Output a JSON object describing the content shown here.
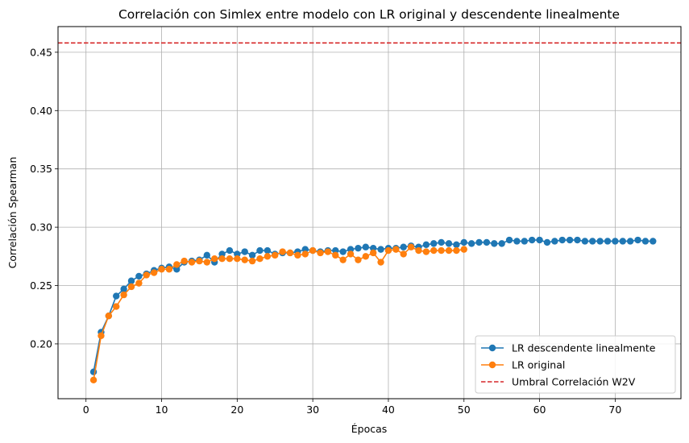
{
  "chart_data": {
    "type": "line",
    "title": "Correlación con Simlex entre modelo con LR original y descendente linealmente",
    "xlabel": "Épocas",
    "ylabel": "Correlación Spearman",
    "xlim": [
      -3.7,
      78.7
    ],
    "ylim": [
      0.153,
      0.472
    ],
    "xticks": [
      0,
      10,
      20,
      30,
      40,
      50,
      60,
      70
    ],
    "xtick_labels": [
      "0",
      "10",
      "20",
      "30",
      "40",
      "50",
      "60",
      "70"
    ],
    "yticks": [
      0.2,
      0.25,
      0.3,
      0.35,
      0.4,
      0.45
    ],
    "ytick_labels": [
      "0.20",
      "0.25",
      "0.30",
      "0.35",
      "0.40",
      "0.45"
    ],
    "grid": true,
    "legend_position": "lower right",
    "series": [
      {
        "name": "LR descendente linealmente",
        "color": "#1f77b4",
        "marker": "circle",
        "x": [
          1,
          2,
          3,
          4,
          5,
          6,
          7,
          8,
          9,
          10,
          11,
          12,
          13,
          14,
          15,
          16,
          17,
          18,
          19,
          20,
          21,
          22,
          23,
          24,
          25,
          26,
          27,
          28,
          29,
          30,
          31,
          32,
          33,
          34,
          35,
          36,
          37,
          38,
          39,
          40,
          41,
          42,
          43,
          44,
          45,
          46,
          47,
          48,
          49,
          50,
          51,
          52,
          53,
          54,
          55,
          56,
          57,
          58,
          59,
          60,
          61,
          62,
          63,
          64,
          65,
          66,
          67,
          68,
          69,
          70,
          71,
          72,
          73,
          74,
          75
        ],
        "y": [
          0.176,
          0.21,
          0.224,
          0.241,
          0.247,
          0.254,
          0.258,
          0.26,
          0.263,
          0.265,
          0.266,
          0.264,
          0.27,
          0.271,
          0.272,
          0.276,
          0.27,
          0.277,
          0.28,
          0.277,
          0.279,
          0.276,
          0.28,
          0.28,
          0.277,
          0.278,
          0.278,
          0.279,
          0.281,
          0.28,
          0.279,
          0.28,
          0.28,
          0.279,
          0.281,
          0.282,
          0.283,
          0.282,
          0.281,
          0.282,
          0.282,
          0.283,
          0.284,
          0.283,
          0.285,
          0.286,
          0.287,
          0.286,
          0.285,
          0.287,
          0.286,
          0.287,
          0.287,
          0.286,
          0.286,
          0.289,
          0.288,
          0.288,
          0.289,
          0.289,
          0.287,
          0.288,
          0.289,
          0.289,
          0.289,
          0.288,
          0.288,
          0.288,
          0.288,
          0.288,
          0.288,
          0.288,
          0.289,
          0.288,
          0.288
        ]
      },
      {
        "name": "LR original",
        "color": "#ff7f0e",
        "marker": "circle",
        "x": [
          1,
          2,
          3,
          4,
          5,
          6,
          7,
          8,
          9,
          10,
          11,
          12,
          13,
          14,
          15,
          16,
          17,
          18,
          19,
          20,
          21,
          22,
          23,
          24,
          25,
          26,
          27,
          28,
          29,
          30,
          31,
          32,
          33,
          34,
          35,
          36,
          37,
          38,
          39,
          40,
          41,
          42,
          43,
          44,
          45,
          46,
          47,
          48,
          49,
          50
        ],
        "y": [
          0.169,
          0.207,
          0.224,
          0.232,
          0.242,
          0.249,
          0.252,
          0.259,
          0.261,
          0.264,
          0.264,
          0.268,
          0.271,
          0.27,
          0.271,
          0.27,
          0.273,
          0.273,
          0.273,
          0.273,
          0.272,
          0.271,
          0.273,
          0.275,
          0.276,
          0.279,
          0.278,
          0.276,
          0.277,
          0.28,
          0.278,
          0.279,
          0.276,
          0.272,
          0.277,
          0.272,
          0.275,
          0.278,
          0.27,
          0.28,
          0.281,
          0.277,
          0.283,
          0.28,
          0.279,
          0.28,
          0.28,
          0.28,
          0.28,
          0.281
        ]
      },
      {
        "name": "Umbral Correlación W2V",
        "color": "#d62728",
        "linestyle": "dashed",
        "y_constant": 0.458
      }
    ]
  }
}
